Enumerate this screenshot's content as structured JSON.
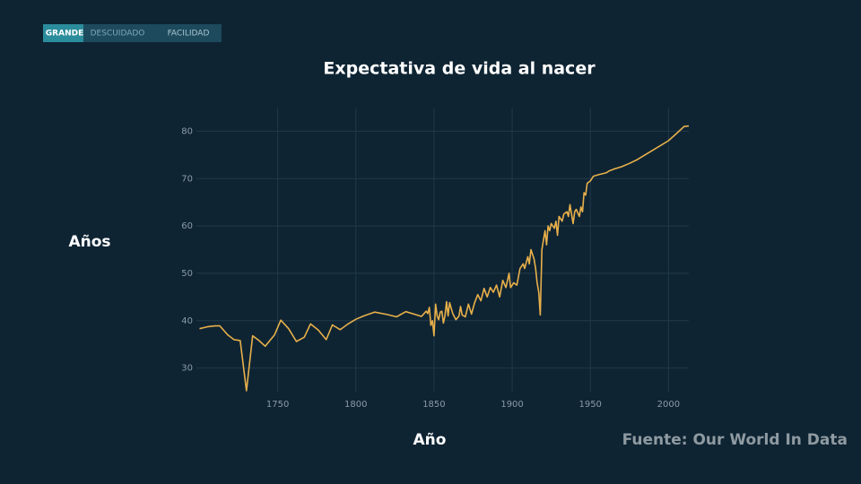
{
  "tabs": [
    "GRANDE",
    "DESCUIDADO",
    "FACILIDAD"
  ],
  "source": "Fuente: Our World In Data",
  "chart_data": {
    "type": "line",
    "title": "Expectativa de vida al nacer",
    "y_label": "Años",
    "x_label": "Año",
    "x": [
      1700,
      1705,
      1710,
      1713,
      1718,
      1722,
      1726,
      1730,
      1734,
      1738,
      1742,
      1748,
      1752,
      1757,
      1762,
      1767,
      1771,
      1776,
      1781,
      1785,
      1790,
      1795,
      1800,
      1805,
      1812,
      1820,
      1826,
      1832,
      1838,
      1842,
      1845,
      1846,
      1847,
      1848,
      1849,
      1850,
      1851,
      1852,
      1853,
      1854,
      1855,
      1856,
      1857,
      1858,
      1859,
      1860,
      1862,
      1864,
      1866,
      1867,
      1868,
      1870,
      1872,
      1874,
      1876,
      1878,
      1880,
      1882,
      1884,
      1886,
      1888,
      1890,
      1892,
      1894,
      1896,
      1898,
      1899,
      1901,
      1903,
      1905,
      1907,
      1908,
      1910,
      1911,
      1912,
      1914,
      1915,
      1916,
      1917,
      1918,
      1919,
      1920,
      1921,
      1922,
      1923,
      1924,
      1925,
      1927,
      1928,
      1929,
      1930,
      1932,
      1933,
      1935,
      1936,
      1937,
      1939,
      1940,
      1941,
      1943,
      1944,
      1945,
      1946,
      1947,
      1948,
      1950,
      1952,
      1955,
      1960,
      1962,
      1965,
      1970,
      1975,
      1980,
      1985,
      1990,
      1995,
      2000,
      2005,
      2010,
      2013
    ],
    "series": [
      {
        "name": "Expectativa de vida",
        "color": "#e8b04a",
        "values": [
          38.3,
          38.7,
          38.9,
          38.9,
          37.0,
          36.0,
          35.8,
          25.2,
          36.8,
          35.8,
          34.6,
          37.0,
          40.1,
          38.3,
          35.6,
          36.5,
          39.3,
          38.0,
          36.0,
          39.1,
          38.1,
          39.3,
          40.3,
          41.0,
          41.8,
          41.3,
          40.8,
          41.9,
          41.3,
          40.9,
          42.0,
          41.5,
          42.8,
          39.0,
          40.0,
          36.8,
          43.5,
          41.0,
          40.2,
          41.8,
          42.0,
          39.5,
          41.0,
          44.0,
          41.0,
          43.8,
          41.5,
          40.2,
          41.0,
          43.0,
          41.2,
          40.8,
          43.5,
          41.4,
          43.8,
          45.5,
          44.2,
          46.8,
          45.0,
          47.0,
          46.0,
          47.5,
          45.0,
          48.5,
          47.0,
          50.0,
          47.0,
          48.0,
          47.5,
          51.0,
          52.0,
          51.0,
          53.5,
          52.0,
          55.0,
          53.0,
          51.0,
          48.0,
          46.0,
          41.2,
          55.0,
          57.0,
          59.0,
          56.0,
          60.0,
          59.0,
          60.5,
          59.5,
          61.0,
          58.0,
          62.0,
          61.0,
          62.5,
          63.0,
          62.0,
          64.5,
          60.5,
          63.0,
          63.5,
          62.0,
          64.0,
          63.0,
          67.0,
          66.5,
          69.0,
          69.5,
          70.5,
          70.8,
          71.2,
          71.6,
          72.0,
          72.5,
          73.2,
          74.0,
          75.0,
          76.0,
          77.0,
          78.0,
          79.5,
          81.0,
          81.1
        ]
      }
    ],
    "xlim": [
      1698,
      2013
    ],
    "xticks": [
      1750,
      1800,
      1850,
      1900,
      1950,
      2000
    ],
    "ylim": [
      25,
      85
    ],
    "yticks": [
      30,
      40,
      50,
      60,
      70,
      80
    ],
    "grid": true
  }
}
